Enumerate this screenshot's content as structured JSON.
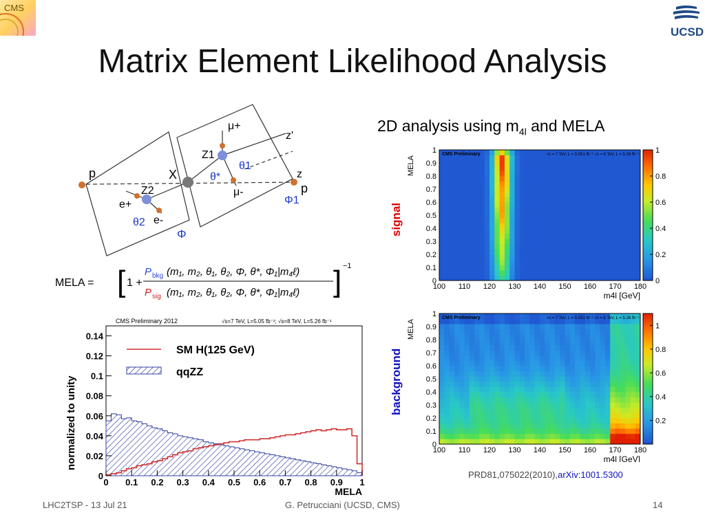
{
  "slide": {
    "title": "Matrix Element Likelihood Analysis",
    "subtitle_prefix": "2D analysis using m",
    "subtitle_sub": "4l",
    "subtitle_suffix": " and MELA",
    "signal_label": "signal",
    "background_label": "background",
    "reference_text": "PRD81,075022(2010),",
    "reference_link": "arXiv:1001.5300",
    "footer_left": "LHC2TSP - 13 Jul 21",
    "footer_mid": "G. Petrucciani (UCSD, CMS)",
    "footer_right": "14",
    "logo_left": "CMS",
    "logo_right": "UCSD",
    "colors": {
      "signal": "#e00000",
      "background": "#1010c0",
      "title": "#111111"
    }
  },
  "diagram": {
    "labels": [
      "p",
      "p",
      "X",
      "Z1",
      "Z2",
      "μ+",
      "μ-",
      "e+",
      "e-",
      "z",
      "z'",
      "θ*",
      "θ1",
      "θ2",
      "Φ",
      "Φ1"
    ],
    "formula": "MELA = [1 + Pbkg(m1, m2, θ1, θ2, Φ, θ*, Φ1|m4ℓ) / Psig(m1, m2, θ1, θ2, Φ, θ*, Φ1|m4ℓ)]^-1"
  },
  "chart_data": [
    {
      "type": "histogram",
      "title": "CMS Preliminary 2012",
      "subtitle": "√s=7 TeV, L=5.05 fb⁻¹;  √s=8 TeV, L=5.26 fb⁻¹",
      "xlabel": "MELA",
      "ylabel": "normalized to unity",
      "xlim": [
        0,
        1
      ],
      "ylim": [
        0,
        0.15
      ],
      "xticks": [
        "0",
        "0.1",
        "0.2",
        "0.3",
        "0.4",
        "0.5",
        "0.6",
        "0.7",
        "0.8",
        "0.9",
        "1"
      ],
      "yticks": [
        "0",
        "0.02",
        "0.04",
        "0.06",
        "0.08",
        "0.1",
        "0.12",
        "0.14"
      ],
      "bin_width": 0.02,
      "series": [
        {
          "name": "SM H(125 GeV)",
          "color": "#d03030",
          "values": [
            0.001,
            0.002,
            0.003,
            0.005,
            0.007,
            0.008,
            0.01,
            0.011,
            0.012,
            0.014,
            0.015,
            0.017,
            0.019,
            0.021,
            0.023,
            0.024,
            0.025,
            0.027,
            0.028,
            0.029,
            0.03,
            0.031,
            0.032,
            0.033,
            0.034,
            0.034,
            0.035,
            0.036,
            0.036,
            0.036,
            0.037,
            0.037,
            0.038,
            0.039,
            0.04,
            0.041,
            0.041,
            0.042,
            0.043,
            0.044,
            0.045,
            0.046,
            0.045,
            0.046,
            0.047,
            0.046,
            0.046,
            0.047,
            0.04,
            0.012
          ]
        },
        {
          "name": "qqZZ",
          "color": "#3040a0",
          "values": [
            0.055,
            0.062,
            0.061,
            0.057,
            0.058,
            0.055,
            0.054,
            0.052,
            0.05,
            0.048,
            0.047,
            0.045,
            0.043,
            0.042,
            0.04,
            0.039,
            0.038,
            0.037,
            0.036,
            0.034,
            0.033,
            0.032,
            0.031,
            0.03,
            0.029,
            0.028,
            0.027,
            0.026,
            0.025,
            0.024,
            0.023,
            0.022,
            0.021,
            0.02,
            0.019,
            0.018,
            0.017,
            0.016,
            0.015,
            0.014,
            0.013,
            0.012,
            0.011,
            0.01,
            0.009,
            0.008,
            0.007,
            0.006,
            0.005,
            0.003
          ]
        }
      ]
    },
    {
      "type": "heatmap",
      "name": "signal",
      "title": "CMS Preliminary",
      "subtitle": "√s = 7 TeV, L = 5.051 fb⁻¹ √s = 8 TeV, L = 5.26 fb⁻¹",
      "xlabel": "m4l [GeV]",
      "ylabel": "MELA",
      "xlim": [
        100,
        180
      ],
      "ylim": [
        0,
        1
      ],
      "xticks": [
        "100",
        "110",
        "120",
        "130",
        "140",
        "150",
        "160",
        "170",
        "180"
      ],
      "yticks": [
        "0",
        "0.1",
        "0.2",
        "0.3",
        "0.4",
        "0.5",
        "0.6",
        "0.7",
        "0.8",
        "0.9",
        "1"
      ],
      "zticks": [
        "0",
        "0.2",
        "0.4",
        "0.6",
        "0.8",
        "1"
      ],
      "zlim": [
        0,
        1
      ],
      "peak_mass": 125,
      "peak_width": 2.5
    },
    {
      "type": "heatmap",
      "name": "background",
      "title": "CMS Preliminary",
      "subtitle": "√s = 7 TeV, L = 5.051 fb⁻¹ √s = 8 TeV, L = 5.26 fb⁻¹",
      "xlabel": "m4l [GeV]",
      "ylabel": "MELA",
      "xlim": [
        100,
        180
      ],
      "ylim": [
        0,
        1
      ],
      "xticks": [
        "100",
        "110",
        "120",
        "130",
        "140",
        "150",
        "160",
        "170",
        "180"
      ],
      "yticks": [
        "0",
        "0.1",
        "0.2",
        "0.3",
        "0.4",
        "0.5",
        "0.6",
        "0.7",
        "0.8",
        "0.9",
        "1"
      ],
      "zticks": [
        "0.2",
        "0.4",
        "0.6",
        "0.8",
        "1"
      ],
      "zlim": [
        0,
        1.1
      ]
    }
  ]
}
